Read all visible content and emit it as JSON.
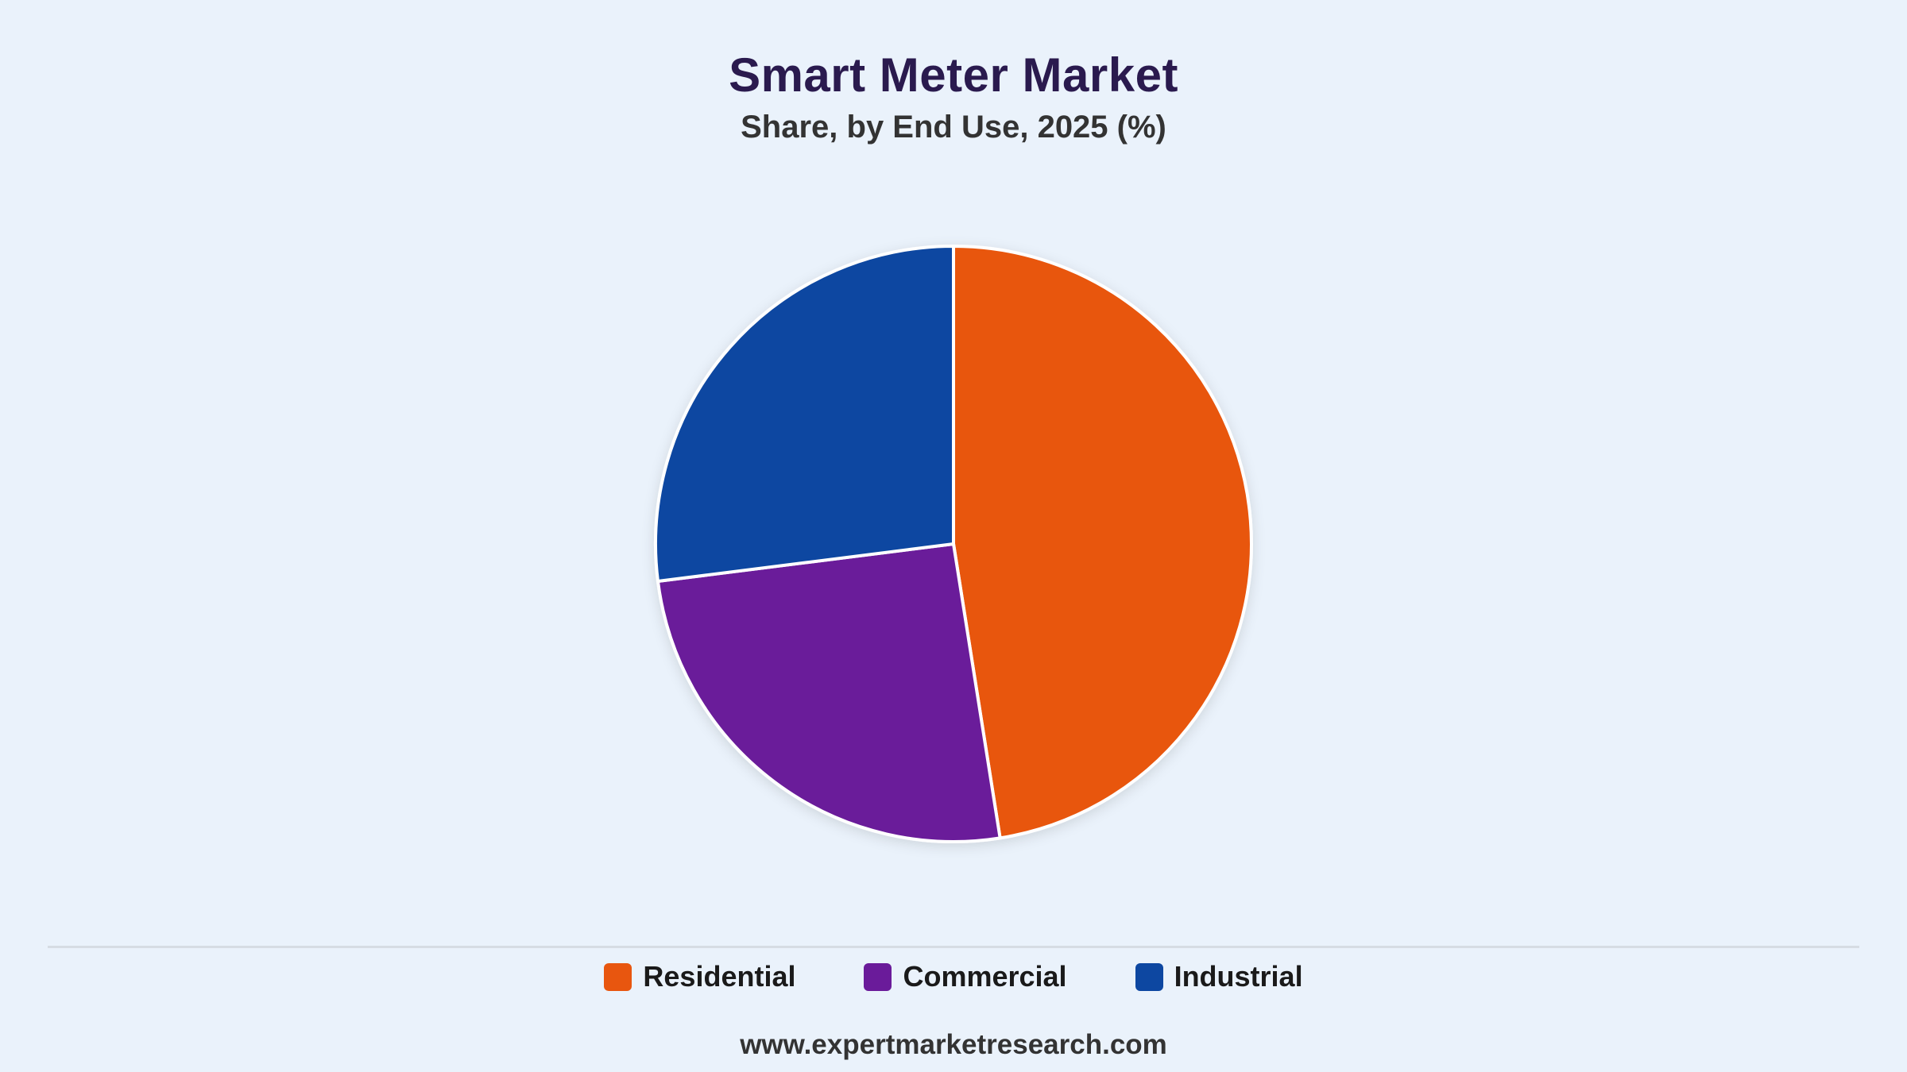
{
  "header": {
    "title": "Smart Meter Market",
    "subtitle": "Share, by End Use, 2025 (%)"
  },
  "chart_data": {
    "type": "pie",
    "title": "Smart Meter Market",
    "subtitle": "Share, by End Use, 2025 (%)",
    "categories": [
      "Residential",
      "Commercial",
      "Industrial"
    ],
    "values": [
      47.5,
      25.5,
      27.0
    ],
    "colors": [
      "#e8560f",
      "#6a1b9a",
      "#0d47a1"
    ],
    "legend_position": "bottom",
    "start_angle_deg": 0,
    "direction": "clockwise"
  },
  "legend": {
    "items": [
      {
        "label": "Residential",
        "color": "#e8560f"
      },
      {
        "label": "Commercial",
        "color": "#6a1b9a"
      },
      {
        "label": "Industrial",
        "color": "#0d47a1"
      }
    ]
  },
  "footer": {
    "source": "www.expertmarketresearch.com"
  }
}
